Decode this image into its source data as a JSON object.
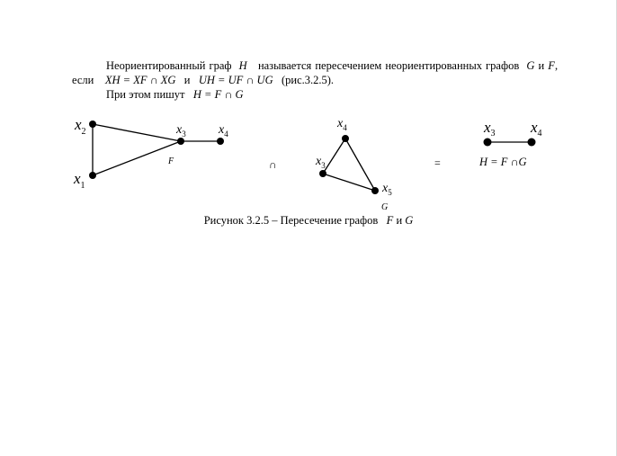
{
  "text": {
    "p1_a": "Неориентированный граф",
    "p1_H": "H",
    "p1_b": "называется пересечением неориентированных графов",
    "p1_G": "G",
    "p1_and1": "и",
    "p1_F": "F",
    "p1_c": ", если",
    "p1_f1": "XH = XF ∩ XG",
    "p1_and2": "и",
    "p1_f2": "UH = UF ∩ UG",
    "p1_ref": "(рис.3.2.5).",
    "p2_a": "При этом пишут",
    "p2_f": "H = F ∩ G"
  },
  "figure": {
    "graph_F": {
      "name": "F",
      "x1": "x",
      "x1_sub": "1",
      "x2": "x",
      "x2_sub": "2",
      "x3": "x",
      "x3_sub": "3",
      "x4": "x",
      "x4_sub": "4"
    },
    "op_intersect": "∩",
    "graph_G": {
      "name": "G",
      "x3": "x",
      "x3_sub": "3",
      "x4": "x",
      "x4_sub": "4",
      "x5": "x",
      "x5_sub": "5"
    },
    "op_equals": "=",
    "graph_H": {
      "x3": "x",
      "x3_sub": "3",
      "x4": "x",
      "x4_sub": "4",
      "formula": "H = F ∩G"
    }
  },
  "caption": {
    "prefix": "Рисунок 3.2.5 – Пересечение графов",
    "F": "F",
    "and": "и",
    "G": "G"
  }
}
